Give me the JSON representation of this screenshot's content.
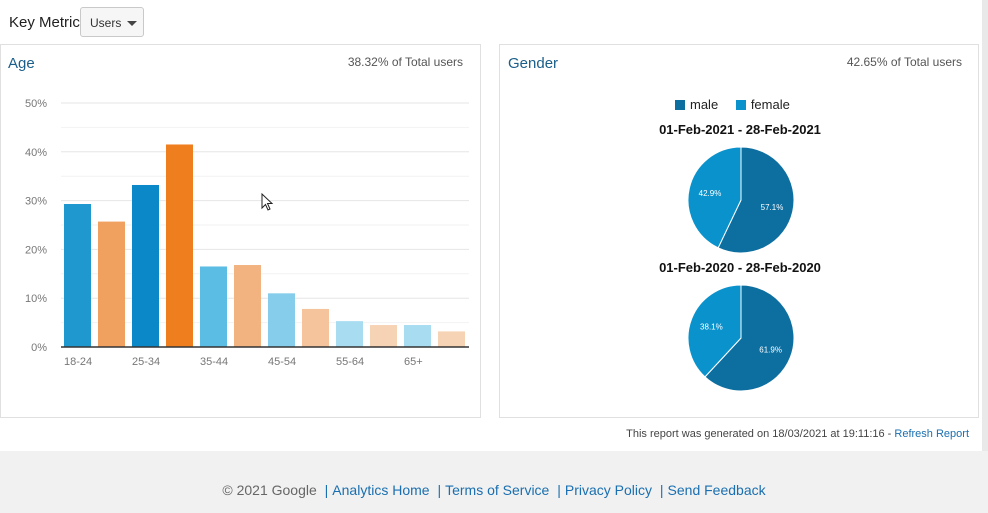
{
  "key_metric": {
    "label": "Key Metric:",
    "selected": "Users",
    "options": [
      "Users"
    ]
  },
  "age_panel": {
    "title": "Age",
    "subtitle": "38.32% of Total users"
  },
  "gender_panel": {
    "title": "Gender",
    "subtitle": "42.65% of Total users",
    "legend": [
      {
        "name": "male",
        "color": "#0d6ea0"
      },
      {
        "name": "female",
        "color": "#0a92cc"
      }
    ],
    "periods": [
      "01-Feb-2021 - 28-Feb-2021",
      "01-Feb-2020 - 28-Feb-2020"
    ]
  },
  "chart_data": [
    {
      "type": "bar",
      "title": "Age",
      "categories": [
        "18-24",
        "25-34",
        "35-44",
        "45-54",
        "55-64",
        "65+"
      ],
      "series": [
        {
          "values": [
            29.3,
            33.2,
            16.5,
            11.0,
            5.3,
            4.5
          ],
          "color": "#2d96cd",
          "colors": [
            "#1e98cf",
            "#0a88c8",
            "#5bbce4",
            "#85cdea",
            "#a8dcf1",
            "#a8dcf1"
          ]
        },
        {
          "values": [
            25.7,
            41.5,
            16.8,
            7.8,
            4.5,
            3.2
          ],
          "color": "#f0a56a",
          "colors": [
            "#f0a05f",
            "#ef7e1f",
            "#f2b380",
            "#f5c49c",
            "#f7d3b6",
            "#f7d3b6"
          ]
        }
      ],
      "ylim": [
        0,
        50
      ],
      "yticks": [
        "0%",
        "10%",
        "20%",
        "30%",
        "40%",
        "50%"
      ],
      "xticks": [
        "18-24",
        "25-34",
        "35-44",
        "45-54",
        "55-64",
        "65+"
      ],
      "grid": true
    },
    {
      "type": "pie",
      "title": "01-Feb-2021 - 28-Feb-2021",
      "labels": [
        "male",
        "female"
      ],
      "values": [
        57.1,
        42.9
      ],
      "value_labels": [
        "57.1%",
        "42.9%"
      ],
      "colors": [
        "#0d6ea0",
        "#0a92cc"
      ]
    },
    {
      "type": "pie",
      "title": "01-Feb-2020 - 28-Feb-2020",
      "labels": [
        "male",
        "female"
      ],
      "values": [
        61.9,
        38.1
      ],
      "value_labels": [
        "61.9%",
        "38.1%"
      ],
      "colors": [
        "#0d6ea0",
        "#0a92cc"
      ]
    }
  ],
  "report_info": {
    "text": "This report was generated on 18/03/2021 at 19:11:16 -",
    "refresh_label": "Refresh Report"
  },
  "footer": {
    "copyright": "© 2021 Google",
    "links": [
      "Analytics Home",
      "Terms of Service",
      "Privacy Policy",
      "Send Feedback"
    ]
  }
}
